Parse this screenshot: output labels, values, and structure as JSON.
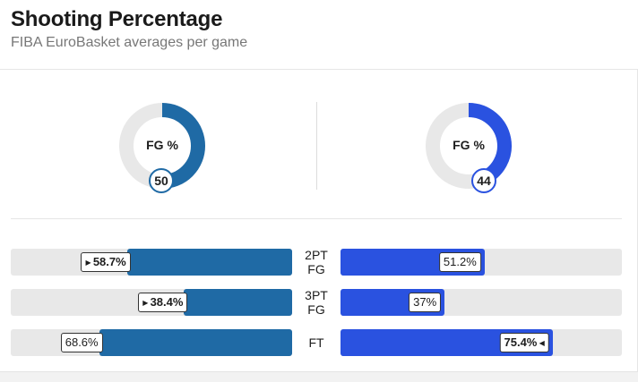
{
  "header": {
    "title": "Shooting Percentage",
    "subtitle": "FIBA EuroBasket averages per game"
  },
  "colors": {
    "team_left": "#1f6aa5",
    "team_right": "#2a52e0",
    "track": "#e8e8e8"
  },
  "chart_data": [
    {
      "type": "pie",
      "title": "FG %",
      "series": [
        {
          "values": [
            50,
            50
          ]
        },
        {
          "values": [
            44,
            56
          ]
        }
      ],
      "labels": [
        "50",
        "44"
      ]
    },
    {
      "type": "bar",
      "categories": [
        "2PT FG",
        "3PT FG",
        "FT"
      ],
      "category_lines": [
        [
          "2PT",
          "FG"
        ],
        [
          "3PT",
          "FG"
        ],
        [
          "FT"
        ]
      ],
      "series": [
        {
          "values": [
            58.7,
            38.4,
            68.6
          ],
          "labels": [
            "58.7%",
            "38.4%",
            "68.6%"
          ],
          "leader": [
            true,
            true,
            false
          ]
        },
        {
          "values": [
            51.2,
            37,
            75.4
          ],
          "labels": [
            "51.2%",
            "37%",
            "75.4%"
          ],
          "leader": [
            false,
            false,
            true
          ]
        }
      ],
      "ylim": [
        0,
        100
      ]
    }
  ]
}
